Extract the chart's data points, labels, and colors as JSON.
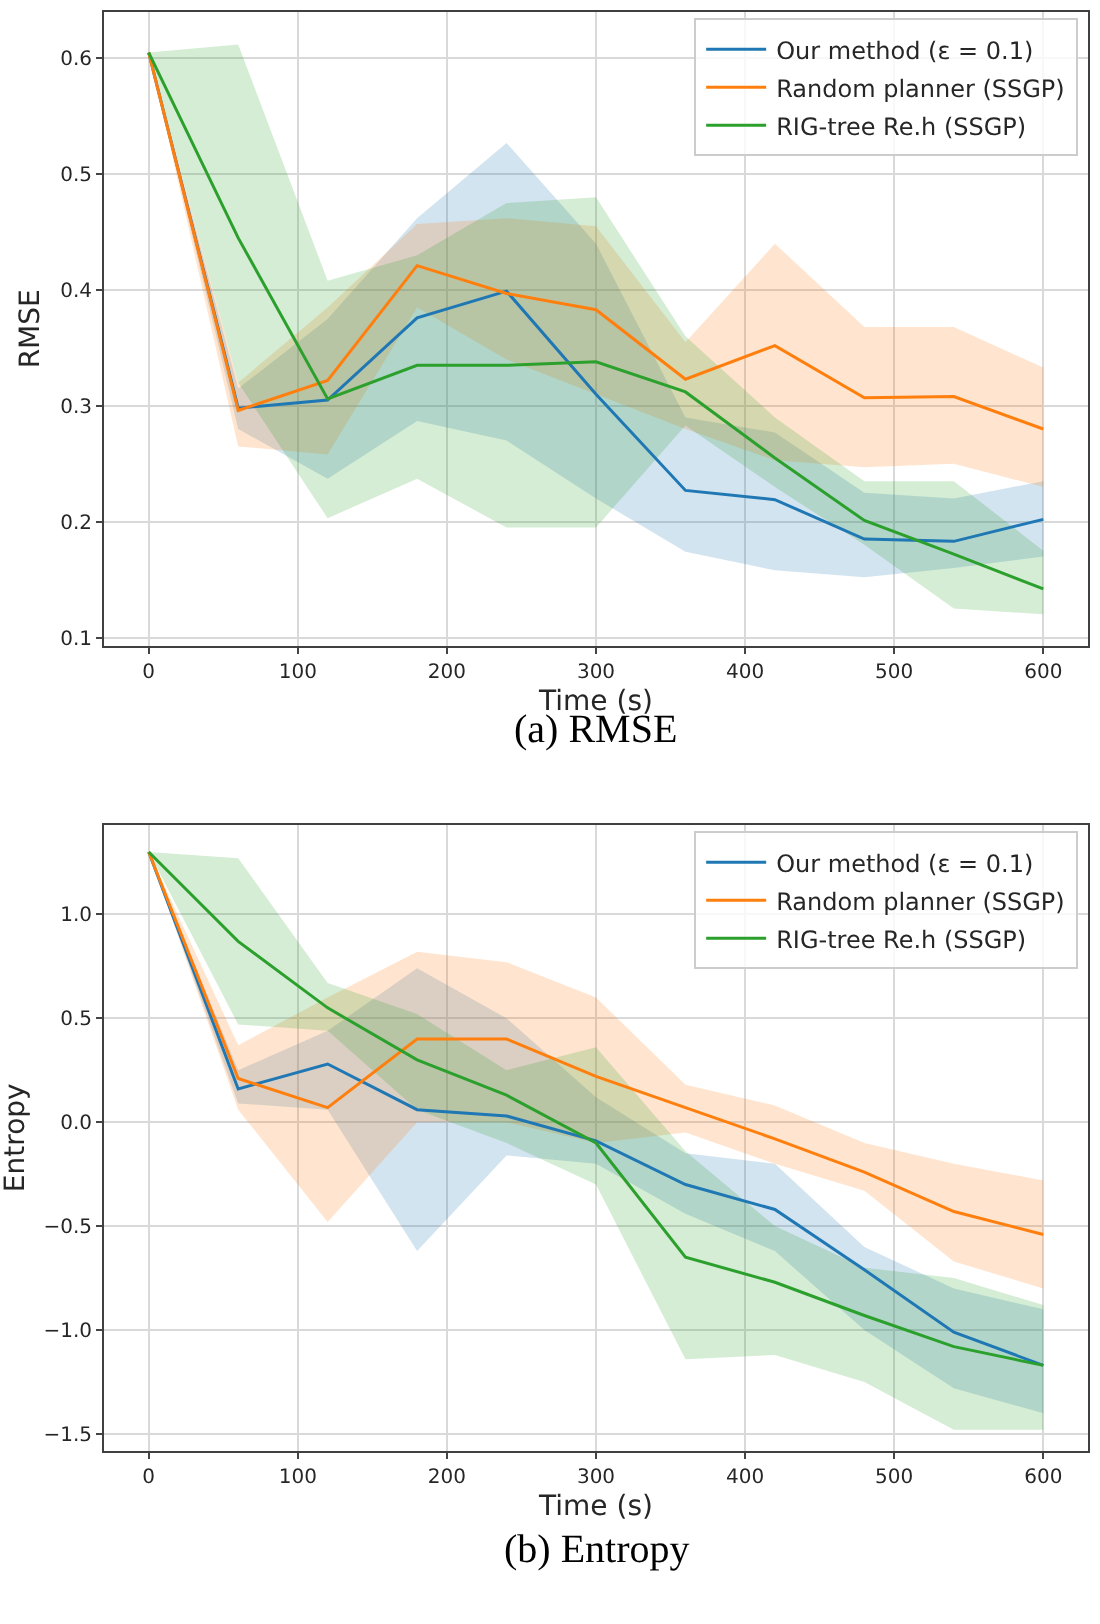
{
  "chart_data": [
    {
      "type": "line",
      "title": "(a) RMSE",
      "xlabel": "Time (s)",
      "ylabel": "RMSE",
      "x": [
        0,
        60,
        120,
        180,
        240,
        300,
        360,
        420,
        480,
        540,
        600
      ],
      "xlim": [
        -30,
        630
      ],
      "xticks": [
        0,
        100,
        200,
        300,
        400,
        500,
        600
      ],
      "ylim": [
        0.093,
        0.64
      ],
      "yticks": [
        0.1,
        0.2,
        0.3,
        0.4,
        0.5,
        0.6
      ],
      "grid": true,
      "legend": "top right",
      "marker": "none",
      "line_style": "solid",
      "series": [
        {
          "name": "Our method (ε = 0.1)",
          "color": "#1f77b4",
          "values": [
            0.605,
            0.298,
            0.305,
            0.376,
            0.399,
            0.31,
            0.227,
            0.219,
            0.185,
            0.183,
            0.202
          ],
          "lower": [
            0.605,
            0.28,
            0.237,
            0.287,
            0.27,
            0.22,
            0.174,
            0.158,
            0.152,
            0.16,
            0.17
          ],
          "upper": [
            0.605,
            0.315,
            0.375,
            0.462,
            0.527,
            0.44,
            0.29,
            0.277,
            0.225,
            0.22,
            0.235
          ]
        },
        {
          "name": "Random planner (SSGP)",
          "color": "#ff7f0e",
          "values": [
            0.605,
            0.296,
            0.322,
            0.421,
            0.397,
            0.383,
            0.323,
            0.352,
            0.307,
            0.308,
            0.28
          ],
          "lower": [
            0.605,
            0.265,
            0.258,
            0.385,
            0.34,
            0.31,
            0.28,
            0.253,
            0.247,
            0.25,
            0.23
          ],
          "upper": [
            0.605,
            0.32,
            0.385,
            0.457,
            0.462,
            0.455,
            0.355,
            0.44,
            0.368,
            0.368,
            0.333
          ]
        },
        {
          "name": "RIG-tree Re.h (SSGP)",
          "color": "#2ca02c",
          "values": [
            0.605,
            0.445,
            0.306,
            0.335,
            0.335,
            0.338,
            0.312,
            0.255,
            0.201,
            0.172,
            0.142
          ],
          "lower": [
            0.605,
            0.32,
            0.203,
            0.237,
            0.195,
            0.195,
            0.283,
            0.23,
            0.18,
            0.125,
            0.12
          ],
          "upper": [
            0.605,
            0.612,
            0.408,
            0.43,
            0.475,
            0.48,
            0.36,
            0.29,
            0.235,
            0.235,
            0.175
          ]
        }
      ]
    },
    {
      "type": "line",
      "title": "(b) Entropy",
      "xlabel": "Time (s)",
      "ylabel": "Entropy",
      "x": [
        0,
        60,
        120,
        180,
        240,
        300,
        360,
        420,
        480,
        540,
        600
      ],
      "xlim": [
        -30,
        630
      ],
      "xticks": [
        0,
        100,
        200,
        300,
        400,
        500,
        600
      ],
      "ylim": [
        -1.58,
        1.43
      ],
      "yticks": [
        {
          "value": -1.5,
          "label": "−1.5"
        },
        {
          "value": -1.0,
          "label": "−1.0"
        },
        {
          "value": -0.5,
          "label": "−0.5"
        },
        {
          "value": 0.0,
          "label": "0.0"
        },
        {
          "value": 0.5,
          "label": "0.5"
        },
        {
          "value": 1.0,
          "label": "1.0"
        }
      ],
      "grid": true,
      "legend": "top right",
      "marker": "none",
      "line_style": "solid",
      "series": [
        {
          "name": "Our method (ε = 0.1)",
          "color": "#1f77b4",
          "values": [
            1.3,
            0.16,
            0.28,
            0.06,
            0.03,
            -0.09,
            -0.3,
            -0.42,
            -0.71,
            -1.01,
            -1.17
          ],
          "lower": [
            1.3,
            0.09,
            0.06,
            -0.62,
            -0.16,
            -0.2,
            -0.44,
            -0.62,
            -1.0,
            -1.28,
            -1.4
          ],
          "upper": [
            1.3,
            0.25,
            0.44,
            0.74,
            0.5,
            0.12,
            -0.15,
            -0.2,
            -0.6,
            -0.8,
            -0.9
          ]
        },
        {
          "name": "Random planner (SSGP)",
          "color": "#ff7f0e",
          "values": [
            1.3,
            0.21,
            0.07,
            0.4,
            0.4,
            0.22,
            0.07,
            -0.08,
            -0.24,
            -0.43,
            -0.54
          ],
          "lower": [
            1.3,
            0.06,
            -0.48,
            0.0,
            0.0,
            -0.1,
            -0.05,
            -0.2,
            -0.33,
            -0.67,
            -0.8
          ],
          "upper": [
            1.3,
            0.37,
            0.6,
            0.82,
            0.77,
            0.6,
            0.18,
            0.08,
            -0.1,
            -0.2,
            -0.28
          ]
        },
        {
          "name": "RIG-tree Re.h (SSGP)",
          "color": "#2ca02c",
          "values": [
            1.3,
            0.87,
            0.55,
            0.3,
            0.13,
            -0.1,
            -0.65,
            -0.77,
            -0.93,
            -1.08,
            -1.17
          ],
          "lower": [
            1.3,
            0.47,
            0.44,
            0.06,
            -0.1,
            -0.3,
            -1.14,
            -1.12,
            -1.25,
            -1.48,
            -1.48
          ],
          "upper": [
            1.3,
            1.27,
            0.67,
            0.52,
            0.25,
            0.36,
            -0.14,
            -0.5,
            -0.7,
            -0.75,
            -0.88
          ]
        }
      ]
    }
  ]
}
